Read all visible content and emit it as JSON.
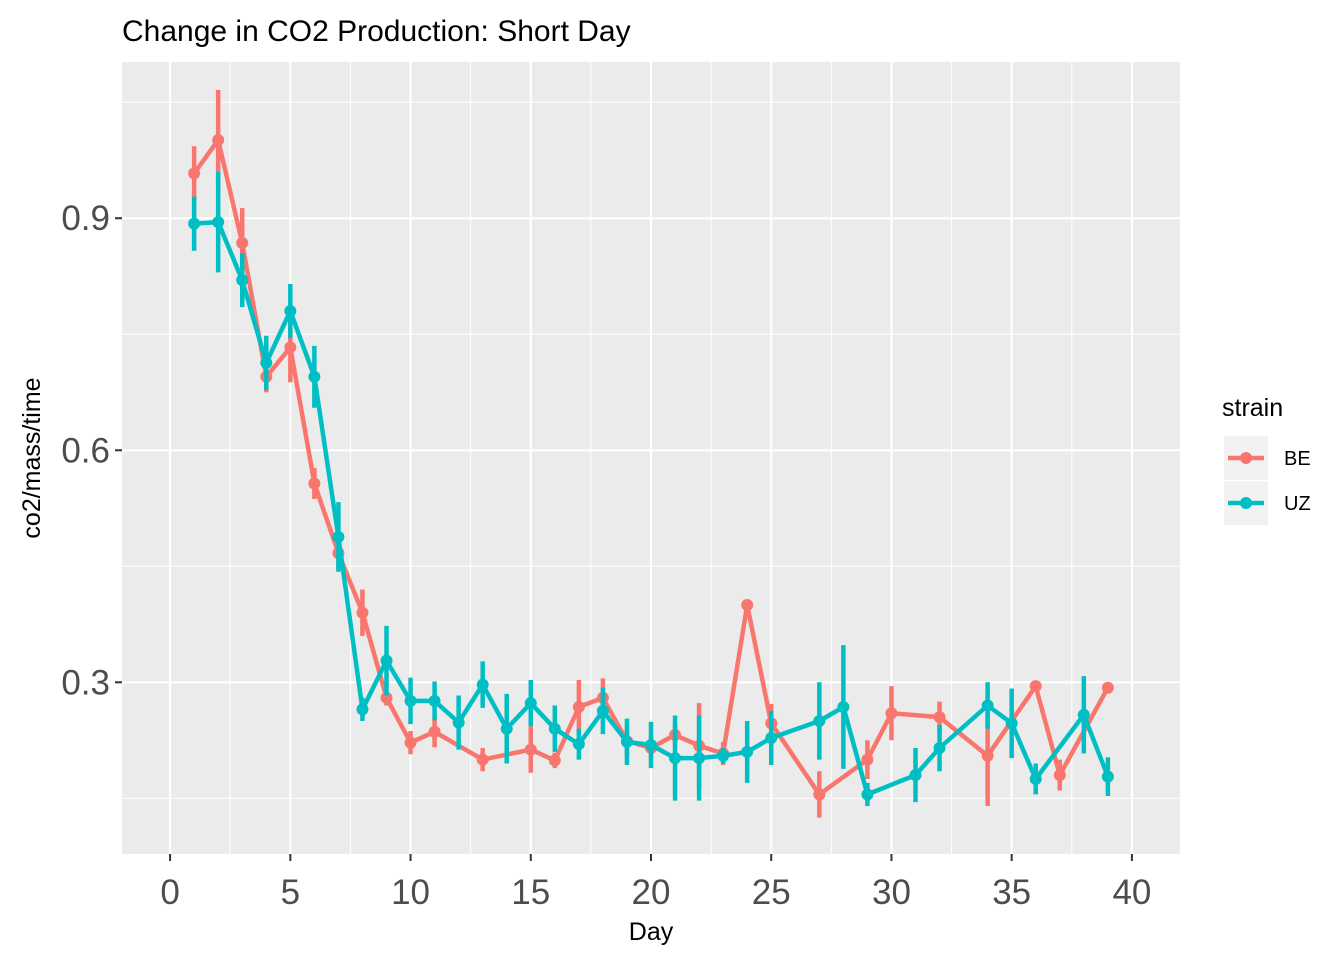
{
  "chart_data": {
    "type": "line",
    "title": "Change in CO2 Production: Short Day",
    "xlabel": "Day",
    "ylabel": "co2/mass/time",
    "xlim": [
      -2,
      42
    ],
    "ylim": [
      0.078,
      1.102
    ],
    "x_ticks": [
      0,
      5,
      10,
      15,
      20,
      25,
      30,
      35,
      40
    ],
    "x_tick_labels": [
      "0",
      "5",
      "10",
      "15",
      "20",
      "25",
      "30",
      "35",
      "40"
    ],
    "y_ticks": [
      0.3,
      0.6,
      0.9
    ],
    "y_tick_labels": [
      "0.3",
      "0.6",
      "0.9"
    ],
    "grid": true,
    "legend": {
      "title": "strain",
      "position": "right"
    },
    "colors": {
      "BE": "#F8766D",
      "UZ": "#00BFC4",
      "panel": "#EBEBEB",
      "grid": "#FFFFFF"
    },
    "series": [
      {
        "name": "BE",
        "x": [
          1,
          2,
          3,
          4,
          5,
          6,
          7,
          8,
          9,
          10,
          11,
          13,
          15,
          16,
          17,
          18,
          19,
          20,
          21,
          22,
          23,
          24,
          25,
          27,
          29,
          30,
          32,
          34,
          36,
          37,
          39
        ],
        "y": [
          0.958,
          1.001,
          0.868,
          0.695,
          0.733,
          0.557,
          0.467,
          0.39,
          0.28,
          0.222,
          0.236,
          0.2,
          0.213,
          0.199,
          0.268,
          0.28,
          0.224,
          0.215,
          0.232,
          0.218,
          0.208,
          0.4,
          0.247,
          0.155,
          0.2,
          0.26,
          0.255,
          0.205,
          0.295,
          0.18,
          0.293
        ],
        "err": [
          0.035,
          0.065,
          0.045,
          0.02,
          0.045,
          0.02,
          0.02,
          0.03,
          0.01,
          0.015,
          0.02,
          0.015,
          0.03,
          0.01,
          0.035,
          0.025,
          0.02,
          0.015,
          0.015,
          0.055,
          0.015,
          0.005,
          0.025,
          0.03,
          0.025,
          0.035,
          0.02,
          0.065,
          0.005,
          0.02,
          0.005
        ]
      },
      {
        "name": "UZ",
        "x": [
          1,
          2,
          3,
          4,
          5,
          6,
          7,
          8,
          9,
          10,
          11,
          12,
          13,
          14,
          15,
          16,
          17,
          18,
          19,
          20,
          21,
          22,
          23,
          24,
          25,
          27,
          28,
          29,
          31,
          32,
          34,
          35,
          36,
          38,
          39
        ],
        "y": [
          0.893,
          0.895,
          0.82,
          0.713,
          0.78,
          0.695,
          0.488,
          0.265,
          0.328,
          0.276,
          0.276,
          0.248,
          0.297,
          0.24,
          0.273,
          0.24,
          0.22,
          0.263,
          0.223,
          0.219,
          0.202,
          0.202,
          0.205,
          0.21,
          0.228,
          0.25,
          0.268,
          0.155,
          0.18,
          0.215,
          0.27,
          0.247,
          0.175,
          0.258,
          0.178
        ],
        "err": [
          0.035,
          0.065,
          0.035,
          0.035,
          0.035,
          0.04,
          0.045,
          0.015,
          0.045,
          0.03,
          0.025,
          0.035,
          0.03,
          0.045,
          0.03,
          0.03,
          0.02,
          0.03,
          0.03,
          0.03,
          0.055,
          0.055,
          0.01,
          0.04,
          0.035,
          0.05,
          0.08,
          0.015,
          0.035,
          0.03,
          0.03,
          0.045,
          0.02,
          0.05,
          0.025
        ]
      }
    ]
  }
}
